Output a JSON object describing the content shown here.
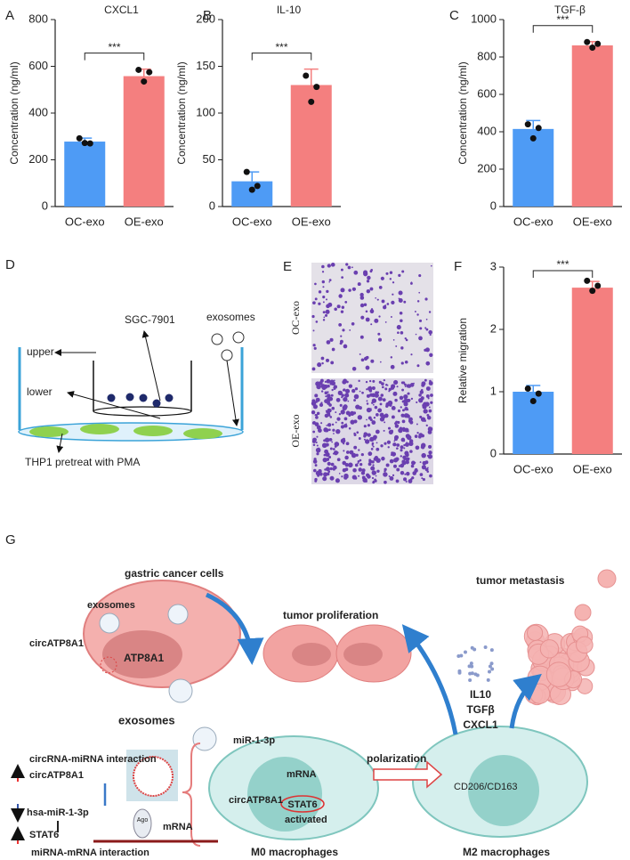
{
  "chart_data": [
    {
      "type": "bar",
      "panel": "A",
      "title": "CXCL1",
      "y_label": "Concentration (ng/ml)",
      "significance": "***",
      "categories": [
        "OC-exo",
        "OE-exo"
      ],
      "values": [
        278,
        558
      ],
      "errors": [
        15,
        30
      ],
      "points": [
        [
          292,
          270,
          272
        ],
        [
          585,
          575,
          535
        ]
      ],
      "colors": [
        "#4e9bf5",
        "#f47f7f"
      ],
      "ylim": [
        0,
        800
      ],
      "yticks": [
        0,
        200,
        400,
        600,
        800
      ]
    },
    {
      "type": "bar",
      "panel": "B",
      "title": "IL-10",
      "y_label": "Concentration (ng/ml)",
      "significance": "***",
      "categories": [
        "OC-exo",
        "OE-exo"
      ],
      "values": [
        27,
        130
      ],
      "errors": [
        10,
        17
      ],
      "points": [
        [
          37,
          22,
          18
        ],
        [
          140,
          128,
          112
        ]
      ],
      "colors": [
        "#4e9bf5",
        "#f47f7f"
      ],
      "ylim": [
        0,
        200
      ],
      "yticks": [
        0,
        50,
        100,
        150,
        200
      ]
    },
    {
      "type": "bar",
      "panel": "C",
      "title": "TGF-β",
      "y_label": "Concentration (ng/ml)",
      "significance": "***",
      "categories": [
        "OC-exo",
        "OE-exo"
      ],
      "values": [
        415,
        862
      ],
      "errors": [
        45,
        20
      ],
      "points": [
        [
          440,
          420,
          365
        ],
        [
          880,
          870,
          850
        ]
      ],
      "colors": [
        "#4e9bf5",
        "#f47f7f"
      ],
      "ylim": [
        0,
        1000
      ],
      "yticks": [
        0,
        200,
        400,
        600,
        800,
        1000
      ]
    },
    {
      "type": "bar",
      "panel": "F",
      "title": null,
      "y_label": "Relative  migration",
      "significance": "***",
      "categories": [
        "OC-exo",
        "OE-exo"
      ],
      "values": [
        1.0,
        2.67
      ],
      "errors": [
        0.1,
        0.1
      ],
      "points": [
        [
          1.05,
          0.97,
          0.85
        ],
        [
          2.78,
          2.7,
          2.62
        ]
      ],
      "colors": [
        "#4e9bf5",
        "#f47f7f"
      ],
      "ylim": [
        0,
        3
      ],
      "yticks": [
        0,
        1,
        2,
        3
      ]
    }
  ],
  "diagram_d": {
    "panel": "D",
    "cells": "SGC-7901",
    "exosomes": "exosomes",
    "upper": "upper",
    "lower": "lower",
    "bottom": "THP1 pretreat with PMA"
  },
  "micrograph_e": {
    "panel": "E",
    "top": "OC-exo",
    "bottom": "OE-exo"
  },
  "diagram_g": {
    "panel": "G",
    "gastric": "gastric cancer cells",
    "exo_in": "exosomes",
    "circ1": "circATP8A1",
    "gene": "ATP8A1",
    "exo_out": "exosomes",
    "prolif": "tumor proliferation",
    "metast": "tumor metastasis",
    "cyto1": "IL10",
    "cyto2": "TGFβ",
    "cyto3": "CXCL1",
    "circ_mirna": "circRNA-miRNA interaction",
    "circ2": "circATP8A1",
    "mir": "hsa-miR-1-3p",
    "stat": "STAT6",
    "ago": "Ago",
    "mrna1": "mRNA",
    "mirna_mrna": "miRNA-mRNA  interaction",
    "mir2": "miR-1-3p",
    "mrna2": "mRNA",
    "circ3": "circATP8A1",
    "stat2": "STAT6",
    "activated": "activated",
    "m0": "M0 macrophages",
    "polar": "polarization",
    "cd": "CD206/CD163",
    "m2": "M2 macrophages"
  }
}
